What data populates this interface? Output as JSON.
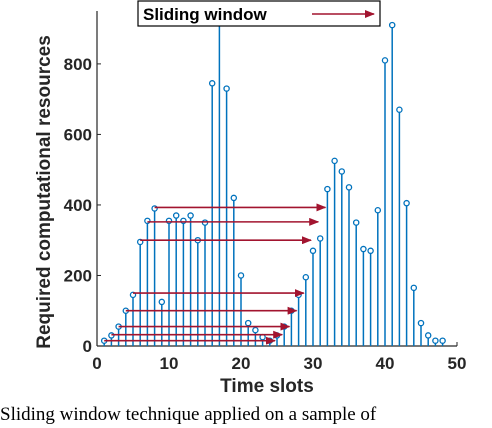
{
  "chart_data": {
    "type": "stem",
    "xlabel": "Time slots",
    "ylabel": "Required computational resources",
    "xlim": [
      0,
      50
    ],
    "ylim": [
      0,
      950
    ],
    "xticks": [
      0,
      10,
      20,
      30,
      40,
      50
    ],
    "yticks": [
      0,
      200,
      400,
      600,
      800
    ],
    "grid": false,
    "series_color": "#0072bd",
    "arrow_color": "#a2142f",
    "legend": {
      "label": "Sliding window",
      "placement": "top-center"
    },
    "x": [
      1,
      2,
      3,
      4,
      5,
      6,
      7,
      8,
      9,
      10,
      11,
      12,
      13,
      14,
      15,
      16,
      17,
      18,
      19,
      20,
      21,
      22,
      23,
      24,
      25,
      26,
      27,
      28,
      29,
      30,
      31,
      32,
      33,
      34,
      35,
      36,
      37,
      38,
      39,
      40,
      41,
      42,
      43,
      44,
      45,
      46,
      47,
      48
    ],
    "y": [
      15,
      30,
      55,
      100,
      145,
      295,
      355,
      390,
      125,
      355,
      370,
      355,
      370,
      300,
      350,
      745,
      920,
      730,
      420,
      200,
      65,
      45,
      25,
      15,
      30,
      55,
      100,
      145,
      195,
      270,
      305,
      445,
      525,
      495,
      450,
      350,
      275,
      270,
      385,
      810,
      910,
      670,
      405,
      165,
      65,
      30,
      15,
      15
    ],
    "arrows": [
      {
        "x_from": 8,
        "x_to": 32,
        "y": 393
      },
      {
        "x_from": 7,
        "x_to": 31,
        "y": 352
      },
      {
        "x_from": 6,
        "x_to": 30,
        "y": 300
      },
      {
        "x_from": 5,
        "x_to": 29,
        "y": 150
      },
      {
        "x_from": 4,
        "x_to": 28,
        "y": 100
      },
      {
        "x_from": 3,
        "x_to": 27,
        "y": 55
      },
      {
        "x_from": 2,
        "x_to": 26,
        "y": 32
      },
      {
        "x_from": 1,
        "x_to": 25,
        "y": 15
      }
    ]
  },
  "caption": "Sliding window technique applied on a sample of"
}
